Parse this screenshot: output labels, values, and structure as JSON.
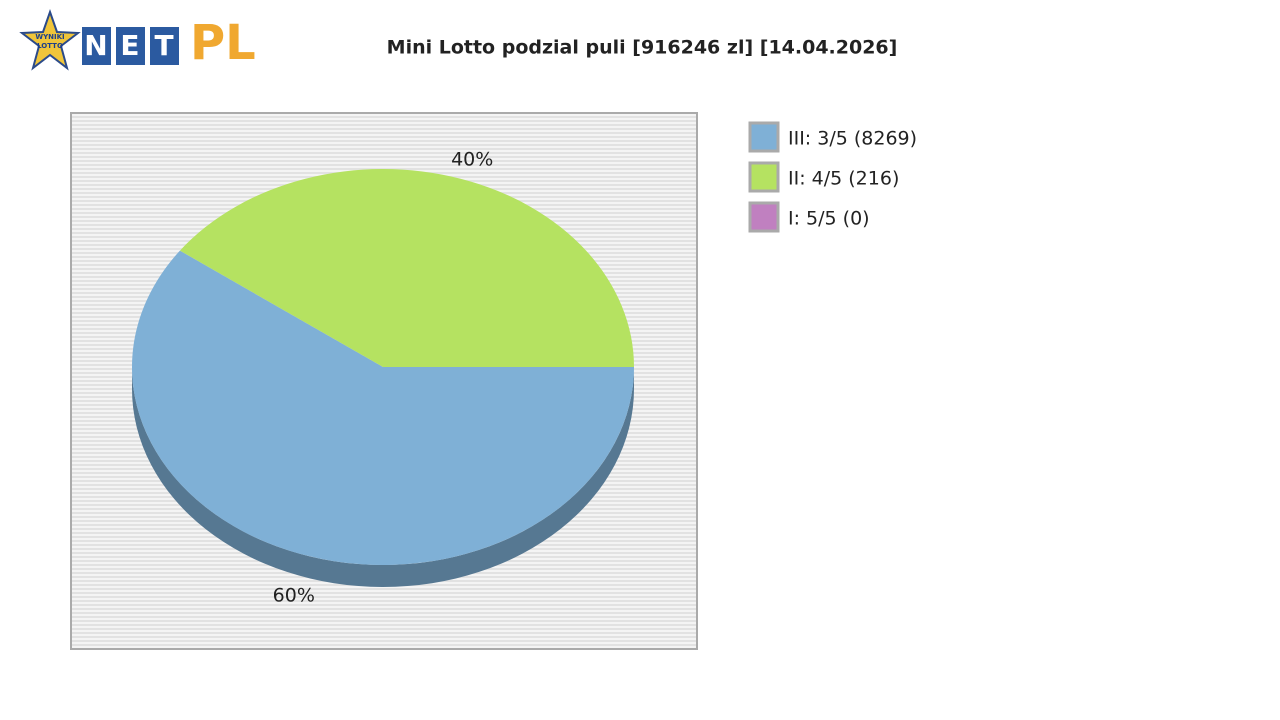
{
  "logo": {
    "badge": [
      "WYNIKI",
      "LOTTO"
    ],
    "net": [
      "N",
      "E",
      "T"
    ],
    "pl": "PL"
  },
  "chart_data": {
    "type": "pie",
    "title": "Mini Lotto podzial puli [916246 zl] [14.04.2026]",
    "categories": [
      "III: 3/5 (8269)",
      "II: 4/5 (216)",
      "I: 5/5 (0)"
    ],
    "values": [
      60,
      40,
      0
    ],
    "value_labels": [
      "60%",
      "40%",
      null
    ],
    "colors": [
      "#7fb0d6",
      "#b5e261",
      "#c080c0"
    ]
  }
}
